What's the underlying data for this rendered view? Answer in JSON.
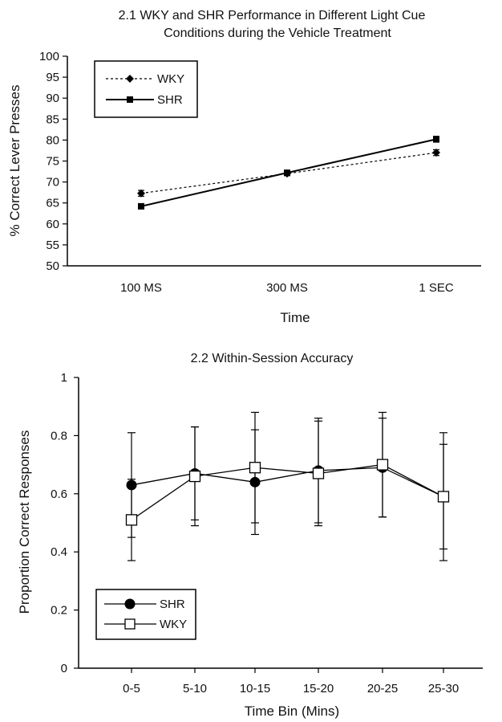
{
  "chart_data": [
    {
      "type": "line",
      "title": "2.1  WKY and SHR Performance in Different Light Cue",
      "subtitle": "Conditions during the Vehicle Treatment",
      "xlabel": "Time",
      "ylabel": "% Correct Lever Presses",
      "categories": [
        "100 MS",
        "300 MS",
        "1 SEC"
      ],
      "ylim": [
        50,
        100
      ],
      "yticks": [
        50,
        55,
        60,
        65,
        70,
        75,
        80,
        85,
        90,
        95,
        100
      ],
      "legend_position": "top-left",
      "series": [
        {
          "name": "WKY",
          "values": [
            67.3,
            72.0,
            77.0
          ],
          "errors": [
            0.7,
            0.5,
            0.7
          ],
          "style": "dotted",
          "marker": "diamond",
          "color": "#000000"
        },
        {
          "name": "SHR",
          "values": [
            64.2,
            72.2,
            80.2
          ],
          "errors": [
            0.5,
            0.5,
            0.7
          ],
          "style": "solid",
          "marker": "square",
          "color": "#000000"
        }
      ]
    },
    {
      "type": "line",
      "title": "2.2   Within-Session Accuracy",
      "xlabel": "Time Bin (Mins)",
      "ylabel": "Proportion Correct Responses",
      "categories": [
        "0-5",
        "5-10",
        "10-15",
        "15-20",
        "20-25",
        "25-30"
      ],
      "ylim": [
        0,
        1
      ],
      "yticks": [
        "0",
        "0.2",
        "0.4",
        "0.6",
        "0.8",
        "1"
      ],
      "legend_position": "bottom-left",
      "series": [
        {
          "name": "SHR",
          "values": [
            0.63,
            0.67,
            0.64,
            0.68,
            0.69,
            0.59
          ],
          "errors": [
            0.18,
            0.16,
            0.18,
            0.18,
            0.17,
            0.22
          ],
          "marker": "filled-circle",
          "color": "#000000"
        },
        {
          "name": "WKY",
          "values": [
            0.51,
            0.66,
            0.69,
            0.67,
            0.7,
            0.59
          ],
          "errors": [
            0.14,
            0.17,
            0.19,
            0.18,
            0.18,
            0.18
          ],
          "marker": "open-square",
          "color": "#000000"
        }
      ]
    }
  ]
}
